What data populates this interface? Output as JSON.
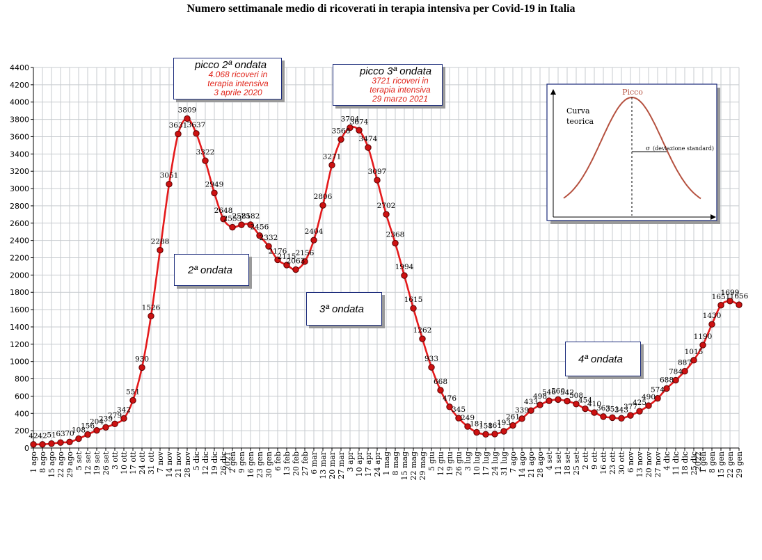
{
  "chart_data": {
    "type": "line",
    "title": "Numero settimanale medio di ricoverati in terapia intensiva per Covid-19 in Italia",
    "ylim": [
      0,
      4400
    ],
    "y_ticks": [
      0,
      200,
      400,
      600,
      800,
      1000,
      1200,
      1400,
      1600,
      1800,
      2000,
      2200,
      2400,
      2600,
      2800,
      3000,
      3200,
      3400,
      3600,
      3800,
      4000,
      4200,
      4400
    ],
    "grid": true,
    "categories": [
      "1 ago",
      "8 ago",
      "15 ago",
      "22 ago",
      "29 ago",
      "5 set",
      "12 set",
      "19 set",
      "26 set",
      "3 ott",
      "10 ott",
      "17 ott",
      "24 ott",
      "31 ott",
      "7 nov",
      "14 nov",
      "21 nov",
      "28 nov",
      "5 dic",
      "12 dic",
      "19 dic",
      "26 dic",
      "2 gen",
      "9 gen",
      "16 gen",
      "23 gen",
      "30 gen",
      "6 feb",
      "13 feb",
      "20 feb",
      "27 feb",
      "6 mar",
      "13 mar",
      "20 mar",
      "27 mar",
      "3 apr",
      "10 apr",
      "17 apr",
      "24 apr",
      "1 mag",
      "8 mag",
      "15 mag",
      "22 mag",
      "29 mag",
      "5 giu",
      "12 giu",
      "19 giu",
      "26 giu",
      "3 lug",
      "10 lug",
      "17 lug",
      "24 lug",
      "31 lug",
      "7 ago",
      "14 ago",
      "21 ago",
      "28 ago",
      "4 set",
      "11 set",
      "18 set",
      "25 set",
      "2 ott",
      "9 ott",
      "16 ott",
      "23 ott",
      "30 ott",
      "6 nov",
      "13 nov",
      "20 nov",
      "27 nov",
      "4 dic",
      "11 dic",
      "18 dic",
      "25 dic",
      "1 gen",
      "8 gen",
      "15 gen",
      "22 gen",
      "29 gen"
    ],
    "year_labels": [
      {
        "index": 22,
        "text": "2021"
      },
      {
        "index": 74,
        "text": "2022"
      }
    ],
    "values": [
      42,
      42,
      51,
      63,
      70,
      108,
      156,
      204,
      239,
      279,
      342,
      551,
      930,
      1526,
      2288,
      3051,
      3631,
      3809,
      3637,
      3322,
      2949,
      2648,
      2553,
      2581,
      2582,
      2456,
      2332,
      2176,
      2115,
      2063,
      2156,
      2404,
      2806,
      3271,
      3568,
      3704,
      3674,
      3474,
      3097,
      2702,
      2368,
      1994,
      1615,
      1262,
      933,
      668,
      476,
      345,
      249,
      181,
      158,
      161,
      193,
      261,
      339,
      433,
      498,
      546,
      560,
      542,
      508,
      454,
      410,
      363,
      351,
      343,
      377,
      425,
      490,
      574,
      688,
      784,
      887,
      1015,
      1190,
      1430,
      1651,
      1699,
      1656
    ],
    "point_labels": [
      "42",
      "42",
      "51",
      "63",
      "70",
      "108",
      "156",
      "204",
      "239",
      "279",
      "342",
      "551",
      "930",
      "1526",
      "2288",
      "3051",
      "3631",
      "3809",
      "3637",
      "3322",
      "2949",
      "2648",
      "2553",
      "2581",
      "2582",
      "2456",
      "2332",
      "2176",
      "2115",
      "2063",
      "2156",
      "2404",
      "2806",
      "3271",
      "3568",
      "3704",
      "3674",
      "3474",
      "3097",
      "2702",
      "2368",
      "1994",
      "1615",
      "1262",
      "933",
      "668",
      "476",
      "345",
      "249",
      "181",
      "158",
      "161",
      "193",
      "261",
      "339",
      "433",
      "498",
      "546",
      "560",
      "542",
      "508",
      "454",
      "410",
      "363",
      "351",
      "343",
      "377",
      "425",
      "490",
      "574",
      "688",
      "784",
      "887",
      "1015",
      "1190",
      "1430",
      "1651",
      "1699",
      "1656"
    ],
    "series_color": "#e41a1c",
    "marker_color": "#cc1111",
    "annotations": {
      "peak2": {
        "title": "picco 2ª ondata",
        "lines": [
          "4.068 ricoveri in",
          "terapia intensiva",
          "3 aprile 2020"
        ]
      },
      "peak3": {
        "title": "picco 3ª ondata",
        "lines": [
          "3721 ricoveri in",
          "terapia intensiva",
          "29 marzo 2021"
        ]
      },
      "waves": [
        "2ª ondata",
        "3ª ondata",
        "4ª ondata"
      ]
    },
    "inset": {
      "peak_label": "Picco",
      "curve_label": [
        "Curva",
        "teorica"
      ],
      "sigma_label": "σ",
      "sigma_text": "(deviazione standard)"
    }
  }
}
